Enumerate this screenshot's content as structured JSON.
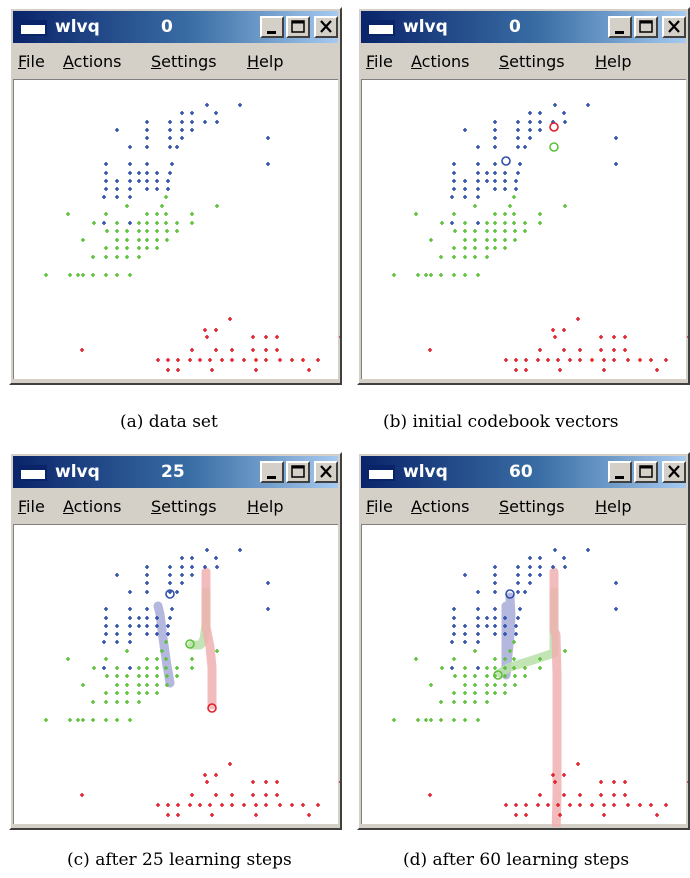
{
  "window_title": "wlvq",
  "menu": [
    "File",
    "Actions",
    "Settings",
    "Help"
  ],
  "colors": {
    "class1": "#3050a8",
    "class2": "#5cc038",
    "class3": "#e0202a",
    "trail1": "#a8acd8",
    "trail2": "#b8e0a8",
    "trail3": "#f0b0b0",
    "titlebar": "#0a246a"
  },
  "panels": [
    {
      "step": "0",
      "caption": "(a) data set",
      "codebook": []
    },
    {
      "step": "0",
      "caption": "(b) initial codebook vectors",
      "codebook": [
        {
          "cls": 3,
          "x": 194,
          "y": 117
        },
        {
          "cls": 2,
          "x": 194,
          "y": 137
        },
        {
          "cls": 1,
          "x": 146,
          "y": 151
        }
      ]
    },
    {
      "step": "25",
      "caption": "(c) after 25 learning steps",
      "codebook": [
        {
          "cls": 1,
          "x": 158,
          "y": 139,
          "trail": [
            [
              146,
              151
            ],
            [
              148,
              159
            ],
            [
              149,
              167
            ],
            [
              150,
              175
            ],
            [
              151,
              183
            ],
            [
              152,
              190
            ],
            [
              153,
              197
            ],
            [
              154,
              204
            ],
            [
              155,
              211
            ],
            [
              156,
              216
            ],
            [
              157,
              222
            ],
            [
              158,
              228
            ]
          ]
        },
        {
          "cls": 2,
          "x": 178,
          "y": 189,
          "trail": [
            [
              194,
              137
            ],
            [
              194,
              170
            ],
            [
              192,
              184
            ],
            [
              190,
              188
            ],
            [
              188,
              190
            ],
            [
              185,
              190
            ],
            [
              182,
              190
            ],
            [
              180,
              190
            ]
          ]
        },
        {
          "cls": 3,
          "x": 200,
          "y": 253,
          "trail": [
            [
              194,
              117
            ],
            [
              194,
              172
            ],
            [
              196,
              182
            ],
            [
              198,
              192
            ],
            [
              199,
              202
            ],
            [
              200,
              212
            ],
            [
              200,
              222
            ],
            [
              200,
              232
            ],
            [
              200,
              242
            ],
            [
              200,
              250
            ]
          ]
        }
      ]
    },
    {
      "step": "60",
      "caption": "(d) after 60 learning steps",
      "codebook": [
        {
          "cls": 1,
          "x": 150,
          "y": 139,
          "trail": [
            [
              146,
              151
            ],
            [
              146,
              220
            ],
            [
              148,
              200
            ],
            [
              150,
              180
            ],
            [
              151,
              160
            ],
            [
              150,
              142
            ]
          ]
        },
        {
          "cls": 2,
          "x": 138,
          "y": 220,
          "trail": [
            [
              194,
              137
            ],
            [
              194,
              198
            ],
            [
              170,
              206
            ],
            [
              150,
              212
            ],
            [
              140,
              218
            ]
          ]
        },
        {
          "cls": 3,
          "x": 196,
          "y": 384,
          "trail": [
            [
              194,
              117
            ],
            [
              194,
              175
            ],
            [
              196,
              180
            ],
            [
              197,
              220
            ],
            [
              197,
              260
            ],
            [
              197,
              300
            ],
            [
              197,
              340
            ],
            [
              196,
              380
            ]
          ]
        }
      ]
    }
  ],
  "dataset": {
    "class1": [
      [
        195,
        95
      ],
      [
        228,
        95
      ],
      [
        170,
        103
      ],
      [
        180,
        103
      ],
      [
        204,
        103
      ],
      [
        135,
        112
      ],
      [
        158,
        112
      ],
      [
        170,
        112
      ],
      [
        180,
        112
      ],
      [
        193,
        112
      ],
      [
        205,
        112
      ],
      [
        105,
        120
      ],
      [
        135,
        120
      ],
      [
        158,
        120
      ],
      [
        170,
        120
      ],
      [
        180,
        120
      ],
      [
        256,
        128
      ],
      [
        135,
        128
      ],
      [
        158,
        128
      ],
      [
        170,
        128
      ],
      [
        118,
        137
      ],
      [
        135,
        137
      ],
      [
        158,
        137
      ],
      [
        165,
        137
      ],
      [
        94,
        154
      ],
      [
        118,
        154
      ],
      [
        135,
        154
      ],
      [
        160,
        154
      ],
      [
        256,
        154
      ],
      [
        94,
        163
      ],
      [
        118,
        163
      ],
      [
        127,
        163
      ],
      [
        135,
        163
      ],
      [
        145,
        163
      ],
      [
        158,
        163
      ],
      [
        94,
        171
      ],
      [
        105,
        171
      ],
      [
        118,
        171
      ],
      [
        127,
        171
      ],
      [
        135,
        171
      ],
      [
        145,
        171
      ],
      [
        156,
        171
      ],
      [
        94,
        179
      ],
      [
        105,
        179
      ],
      [
        118,
        179
      ],
      [
        135,
        179
      ],
      [
        145,
        179
      ],
      [
        156,
        179
      ],
      [
        92,
        187
      ],
      [
        105,
        187
      ],
      [
        118,
        187
      ],
      [
        92,
        213
      ],
      [
        118,
        213
      ]
    ],
    "class2": [
      [
        154,
        187
      ],
      [
        115,
        196
      ],
      [
        150,
        196
      ],
      [
        205,
        196
      ],
      [
        56,
        204
      ],
      [
        94,
        204
      ],
      [
        180,
        204
      ],
      [
        135,
        204
      ],
      [
        145,
        204
      ],
      [
        154,
        204
      ],
      [
        82,
        213
      ],
      [
        105,
        213
      ],
      [
        127,
        213
      ],
      [
        135,
        213
      ],
      [
        145,
        213
      ],
      [
        154,
        213
      ],
      [
        165,
        213
      ],
      [
        180,
        213
      ],
      [
        95,
        221
      ],
      [
        105,
        221
      ],
      [
        115,
        221
      ],
      [
        127,
        221
      ],
      [
        135,
        221
      ],
      [
        145,
        221
      ],
      [
        155,
        221
      ],
      [
        165,
        221
      ],
      [
        71,
        230
      ],
      [
        105,
        230
      ],
      [
        115,
        230
      ],
      [
        127,
        230
      ],
      [
        135,
        230
      ],
      [
        145,
        230
      ],
      [
        155,
        230
      ],
      [
        94,
        238
      ],
      [
        105,
        238
      ],
      [
        115,
        238
      ],
      [
        127,
        238
      ],
      [
        135,
        238
      ],
      [
        145,
        238
      ],
      [
        81,
        247
      ],
      [
        94,
        247
      ],
      [
        105,
        247
      ],
      [
        115,
        247
      ],
      [
        127,
        247
      ],
      [
        34,
        265
      ],
      [
        58,
        265
      ],
      [
        66,
        265
      ],
      [
        71,
        265
      ],
      [
        81,
        265
      ],
      [
        94,
        265
      ],
      [
        105,
        265
      ],
      [
        118,
        265
      ]
    ],
    "class3": [
      [
        218,
        309
      ],
      [
        193,
        320
      ],
      [
        204,
        320
      ],
      [
        195,
        327
      ],
      [
        241,
        327
      ],
      [
        254,
        327
      ],
      [
        265,
        327
      ],
      [
        329,
        327
      ],
      [
        70,
        340
      ],
      [
        180,
        340
      ],
      [
        204,
        340
      ],
      [
        220,
        340
      ],
      [
        241,
        340
      ],
      [
        254,
        340
      ],
      [
        265,
        340
      ],
      [
        146,
        350
      ],
      [
        156,
        350
      ],
      [
        166,
        350
      ],
      [
        178,
        350
      ],
      [
        188,
        350
      ],
      [
        198,
        350
      ],
      [
        210,
        350
      ],
      [
        220,
        350
      ],
      [
        232,
        350
      ],
      [
        244,
        350
      ],
      [
        254,
        350
      ],
      [
        268,
        350
      ],
      [
        280,
        350
      ],
      [
        291,
        350
      ],
      [
        306,
        350
      ],
      [
        156,
        360
      ],
      [
        166,
        360
      ],
      [
        200,
        360
      ],
      [
        244,
        360
      ],
      [
        297,
        360
      ]
    ]
  }
}
